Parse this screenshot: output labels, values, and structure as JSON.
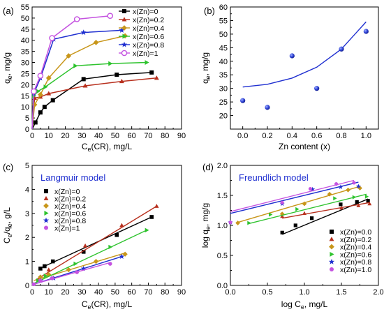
{
  "panel_labels": [
    "(a)",
    "(b)",
    "(c)",
    "(d)"
  ],
  "colors": {
    "x0": "#000000",
    "x02": "#b8301e",
    "x04": "#c8961a",
    "x06": "#2ec32e",
    "x08": "#1f2fd0",
    "x1": "#c452e0",
    "fit_b": "#1f2fd0",
    "model_text": "#1f2fd0"
  },
  "markers": {
    "x0": "square",
    "x02": "triangle-up",
    "x04": "diamond",
    "x06": "triangle-right",
    "x08": "star",
    "x1": "circle"
  },
  "chart_data": [
    {
      "panel": "(a)",
      "type": "line",
      "xlabel_main": "C",
      "xlabel_sub": "e",
      "xlabel_rest": "(CR), mg/L",
      "ylabel_main": "q",
      "ylabel_sub": "e",
      "ylabel_rest": ", mg/g",
      "xlim": [
        0,
        90
      ],
      "ylim": [
        0,
        55
      ],
      "xticks": [
        0,
        10,
        20,
        30,
        40,
        50,
        60,
        70,
        80,
        90
      ],
      "yticks": [
        0,
        5,
        10,
        15,
        20,
        25,
        30,
        35,
        40,
        45,
        50,
        55
      ],
      "legend_position": "top-right",
      "series": [
        {
          "key": "x0",
          "name": "x(Zn)=0",
          "x": [
            0,
            2,
            5,
            7.5,
            12.5,
            31,
            51,
            72
          ],
          "y": [
            0,
            3,
            7.5,
            10,
            13,
            22.5,
            24.5,
            25.5
          ]
        },
        {
          "key": "x02",
          "name": "x(Zn)=0.2",
          "x": [
            0,
            1.5,
            5,
            10,
            32,
            54,
            75
          ],
          "y": [
            0,
            14,
            14.5,
            16,
            19.5,
            21.5,
            23
          ]
        },
        {
          "key": "x04",
          "name": "x(Zn)=0.4",
          "x": [
            0,
            1.5,
            5,
            10,
            22,
            38.5,
            56
          ],
          "y": [
            0,
            11,
            15.5,
            23,
            33,
            39,
            42
          ]
        },
        {
          "key": "x06",
          "name": "x(Zn)=0.6",
          "x": [
            0,
            1,
            3.5,
            8,
            26,
            47,
            69
          ],
          "y": [
            0,
            15,
            17,
            19,
            28.5,
            29.5,
            30
          ]
        },
        {
          "key": "x08",
          "name": "x(Zn)=0.8",
          "x": [
            0,
            1,
            5,
            13,
            31,
            54
          ],
          "y": [
            0,
            16,
            23,
            40.5,
            43.5,
            44.5
          ]
        },
        {
          "key": "x1",
          "name": "x(Zn)=1",
          "x": [
            0,
            1,
            5,
            12,
            27,
            47
          ],
          "y": [
            0,
            17,
            24,
            41,
            49.5,
            51
          ]
        }
      ]
    },
    {
      "panel": "(b)",
      "type": "scatter",
      "xlabel": "Zn content (x)",
      "ylabel_main": "q",
      "ylabel_sub": "e",
      "ylabel_rest": ", mg/g",
      "xlim": [
        -0.1,
        1.1
      ],
      "ylim": [
        15,
        60
      ],
      "xticks": [
        0.0,
        0.2,
        0.4,
        0.6,
        0.8,
        1.0
      ],
      "yticks": [
        20,
        25,
        30,
        35,
        40,
        45,
        50,
        55,
        60
      ],
      "points": {
        "x": [
          0.0,
          0.2,
          0.4,
          0.6,
          0.8,
          1.0
        ],
        "y": [
          25.5,
          23,
          42,
          30,
          44.5,
          51
        ]
      },
      "fit_curve": {
        "x": [
          0.0,
          0.2,
          0.4,
          0.6,
          0.8,
          1.0
        ],
        "y": [
          30.5,
          31.5,
          33.8,
          37.8,
          44.5,
          54.5
        ]
      }
    },
    {
      "panel": "(c)",
      "type": "scatter",
      "title": "Langmuir model",
      "xlabel_main": "C",
      "xlabel_sub": "e",
      "xlabel_rest": "(CR), mg/L",
      "ylabel_parts": [
        "C",
        "e",
        "/q",
        "e",
        ", g/L"
      ],
      "xlim": [
        0,
        90
      ],
      "ylim": [
        0,
        5
      ],
      "xticks": [
        0,
        10,
        20,
        30,
        40,
        50,
        60,
        70,
        80,
        90
      ],
      "yticks": [
        0,
        1,
        2,
        3,
        4,
        5
      ],
      "legend_position": "top-left",
      "series": [
        {
          "key": "x0",
          "name": "x(Zn)=0",
          "x": [
            5,
            7.5,
            12.5,
            31,
            51,
            72
          ],
          "y": [
            0.7,
            0.8,
            1.0,
            1.4,
            2.1,
            2.85
          ],
          "fit": [
            [
              5,
              0.72
            ],
            [
              72,
              2.85
            ]
          ]
        },
        {
          "key": "x02",
          "name": "x(Zn)=0.2",
          "x": [
            5,
            10,
            32,
            54,
            75
          ],
          "y": [
            0.35,
            0.65,
            1.65,
            2.5,
            3.3
          ],
          "fit": [
            [
              2,
              0.22
            ],
            [
              75,
              3.3
            ]
          ]
        },
        {
          "key": "x04",
          "name": "x(Zn)=0.4",
          "x": [
            5,
            10,
            22,
            38.5,
            56
          ],
          "y": [
            0.35,
            0.45,
            0.65,
            1.0,
            1.3
          ],
          "fit": [
            [
              1,
              0.2
            ],
            [
              56,
              1.35
            ]
          ]
        },
        {
          "key": "x06",
          "name": "x(Zn)=0.6",
          "x": [
            3.5,
            8,
            26,
            47,
            69
          ],
          "y": [
            0.2,
            0.4,
            0.9,
            1.6,
            2.3
          ],
          "fit": [
            [
              1,
              0.08
            ],
            [
              69,
              2.3
            ]
          ]
        },
        {
          "key": "x08",
          "name": "x(Zn)=0.8",
          "x": [
            5,
            13,
            31,
            54
          ],
          "y": [
            0.2,
            0.3,
            0.7,
            1.2
          ],
          "fit": [
            [
              1,
              0.05
            ],
            [
              54,
              1.2
            ]
          ]
        },
        {
          "key": "x1",
          "name": "x(Zn)=1",
          "x": [
            1,
            5,
            12,
            27,
            47
          ],
          "y": [
            0.05,
            0.2,
            0.3,
            0.55,
            0.9
          ],
          "fit": [
            [
              1,
              0.05
            ],
            [
              47,
              0.95
            ]
          ]
        }
      ]
    },
    {
      "panel": "(d)",
      "type": "scatter",
      "title": "Freundlich model",
      "xlabel_main": "log C",
      "xlabel_sub": "e",
      "xlabel_rest": ", mg/L",
      "ylabel_main": "log q",
      "ylabel_sub": "e",
      "ylabel_rest": ", mg/g",
      "xlim": [
        0,
        2.0
      ],
      "ylim": [
        0,
        2.0
      ],
      "xticks": [
        0.0,
        0.5,
        1.0,
        1.5,
        2.0
      ],
      "yticks": [
        0.0,
        0.5,
        1.0,
        1.5,
        2.0
      ],
      "legend_position": "bottom-right",
      "series": [
        {
          "key": "x0",
          "name": "x(Zn)=0.0",
          "x": [
            0.7,
            0.88,
            1.1,
            1.49,
            1.71,
            1.86
          ],
          "y": [
            0.88,
            1.0,
            1.12,
            1.35,
            1.39,
            1.41
          ],
          "fit": [
            [
              0.7,
              0.85
            ],
            [
              1.86,
              1.44
            ]
          ]
        },
        {
          "key": "x02",
          "name": "x(Zn)=0.2",
          "x": [
            0.7,
            1.0,
            1.5,
            1.73,
            1.88
          ],
          "y": [
            1.15,
            1.2,
            1.29,
            1.33,
            1.36
          ],
          "fit": [
            [
              0.7,
              1.12
            ],
            [
              1.88,
              1.38
            ]
          ]
        },
        {
          "key": "x04",
          "name": "x(Zn)=0.4",
          "x": [
            0.1,
            0.7,
            1.0,
            1.34,
            1.59,
            1.75
          ],
          "y": [
            1.04,
            1.19,
            1.36,
            1.52,
            1.59,
            1.62
          ],
          "fit": [
            [
              0.1,
              1.05
            ],
            [
              1.75,
              1.65
            ]
          ]
        },
        {
          "key": "x06",
          "name": "x(Zn)=0.6",
          "x": [
            0.25,
            0.54,
            0.9,
            1.41,
            1.67,
            1.84
          ],
          "y": [
            1.04,
            1.18,
            1.27,
            1.45,
            1.47,
            1.48
          ],
          "fit": [
            [
              0.25,
              1.03
            ],
            [
              1.84,
              1.52
            ]
          ]
        },
        {
          "key": "x08",
          "name": "x(Zn)=0.8",
          "x": [
            0.0,
            0.7,
            1.11,
            1.49,
            1.73
          ],
          "y": [
            1.05,
            1.36,
            1.6,
            1.64,
            1.65
          ],
          "fit": [
            [
              0.0,
              1.2
            ],
            [
              1.73,
              1.72
            ]
          ]
        },
        {
          "key": "x1",
          "name": "x(Zn)=1.0",
          "x": [
            0.0,
            0.7,
            1.08,
            1.43,
            1.67
          ],
          "y": [
            1.05,
            1.38,
            1.61,
            1.69,
            1.71
          ],
          "fit": [
            [
              0.0,
              1.23
            ],
            [
              1.67,
              1.75
            ]
          ]
        }
      ]
    }
  ]
}
